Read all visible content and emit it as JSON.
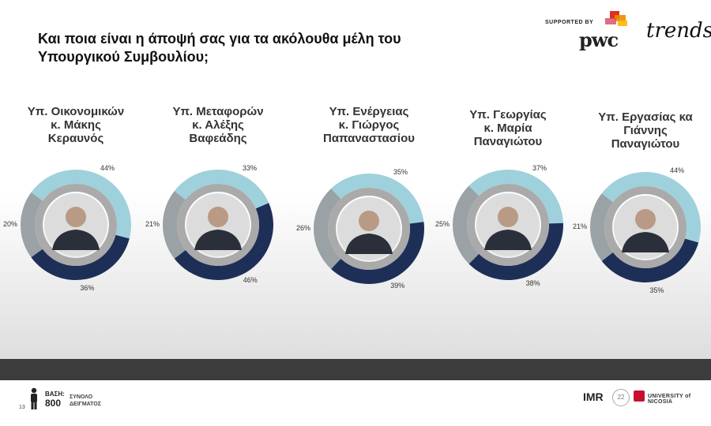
{
  "header": {
    "title": "Και ποια είναι η άποψή σας για τα ακόλουθα μέλη του Υπουργικού Συμβουλίου;",
    "supported_by": "SUPPORTED BY",
    "pwc": "pwc",
    "trends": "trends."
  },
  "colors": {
    "positive": "#1e2f57",
    "neutral": "#9aa2a6",
    "negative": "#9fd1dc",
    "inner_ring": "#aaaaaa",
    "photo_bg": "#dcdcdc"
  },
  "chart_data": [
    {
      "type": "pie",
      "title": "Υπ. Οικονομικών\nκ. Μάκης\nΚεραυνός",
      "slices": [
        {
          "label": "44%",
          "value": 44,
          "category": "negative"
        },
        {
          "label": "36%",
          "value": 36,
          "category": "positive"
        },
        {
          "label": "20%",
          "value": 20,
          "category": "neutral"
        }
      ]
    },
    {
      "type": "pie",
      "title": "Υπ. Μεταφορών\nκ. Αλέξης\nΒαφεάδης",
      "slices": [
        {
          "label": "33%",
          "value": 33,
          "category": "negative"
        },
        {
          "label": "46%",
          "value": 46,
          "category": "positive"
        },
        {
          "label": "21%",
          "value": 21,
          "category": "neutral"
        }
      ]
    },
    {
      "type": "pie",
      "title": "Υπ. Ενέργειας\nκ. Γιώργος\nΠαπαναστασίου",
      "slices": [
        {
          "label": "35%",
          "value": 35,
          "category": "negative"
        },
        {
          "label": "39%",
          "value": 39,
          "category": "positive"
        },
        {
          "label": "26%",
          "value": 26,
          "category": "neutral"
        }
      ]
    },
    {
      "type": "pie",
      "title": "Υπ. Γεωργίας\nκ. Μαρία\nΠαναγιώτου",
      "slices": [
        {
          "label": "37%",
          "value": 37,
          "category": "negative"
        },
        {
          "label": "38%",
          "value": 38,
          "category": "positive"
        },
        {
          "label": "25%",
          "value": 25,
          "category": "neutral"
        }
      ]
    },
    {
      "type": "pie",
      "title": "Υπ. Εργασίας κα\nΓιάννης\nΠαναγιώτου",
      "slices": [
        {
          "label": "44%",
          "value": 44,
          "category": "negative"
        },
        {
          "label": "35%",
          "value": 35,
          "category": "positive"
        },
        {
          "label": "21%",
          "value": 21,
          "category": "neutral"
        }
      ]
    }
  ],
  "footer": {
    "page_number": "13",
    "base_label": "ΒΑΣΗ:",
    "base_value": "800",
    "sample_label": "ΣΥΝΟΛΟ\nΔΕΙΓΜΑΤΟΣ",
    "imr": "IMR",
    "anniversary": "22",
    "university": "UNIVERSITY of NICOSIA"
  }
}
